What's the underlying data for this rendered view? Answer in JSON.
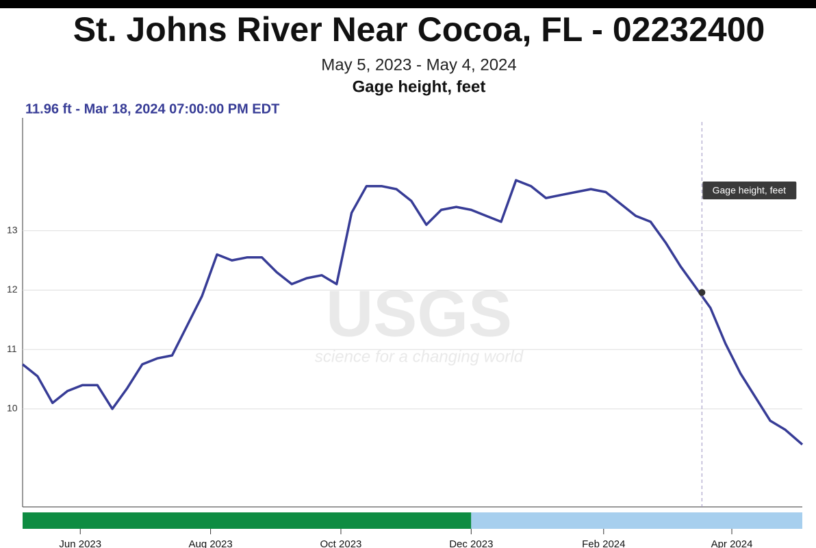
{
  "chart_data": {
    "type": "line",
    "title": "St. Johns River Near Cocoa, FL - 02232400",
    "subtitle": "May 5, 2023 - May 4, 2024",
    "y_label": "Gage height, feet",
    "hover": {
      "label": "11.96 ft - Mar 18, 2024 07:00:00 PM EDT",
      "x": "2024-03-18",
      "y": 11.96,
      "tooltip": "Gage height, feet"
    },
    "watermark": {
      "title": "USGS",
      "tagline": "science for a changing world"
    },
    "x": [
      "2023-05-05",
      "2023-05-12",
      "2023-05-19",
      "2023-05-26",
      "2023-06-02",
      "2023-06-09",
      "2023-06-16",
      "2023-06-23",
      "2023-06-30",
      "2023-07-07",
      "2023-07-14",
      "2023-07-21",
      "2023-07-28",
      "2023-08-04",
      "2023-08-11",
      "2023-08-18",
      "2023-08-25",
      "2023-09-01",
      "2023-09-08",
      "2023-09-15",
      "2023-09-22",
      "2023-09-29",
      "2023-10-06",
      "2023-10-13",
      "2023-10-20",
      "2023-10-27",
      "2023-11-03",
      "2023-11-10",
      "2023-11-17",
      "2023-11-24",
      "2023-12-01",
      "2023-12-08",
      "2023-12-15",
      "2023-12-22",
      "2023-12-29",
      "2024-01-05",
      "2024-01-12",
      "2024-01-19",
      "2024-01-26",
      "2024-02-02",
      "2024-02-09",
      "2024-02-16",
      "2024-02-23",
      "2024-03-01",
      "2024-03-08",
      "2024-03-15",
      "2024-03-22",
      "2024-03-29",
      "2024-04-05",
      "2024-04-12",
      "2024-04-19",
      "2024-04-26",
      "2024-05-04"
    ],
    "series": [
      {
        "name": "Gage height, feet",
        "color": "#373c96",
        "values": [
          10.75,
          10.55,
          10.1,
          10.3,
          10.4,
          10.4,
          10.0,
          10.35,
          10.75,
          10.85,
          10.9,
          11.4,
          11.9,
          12.6,
          12.5,
          12.55,
          12.55,
          12.3,
          12.1,
          12.2,
          12.25,
          12.1,
          13.3,
          13.75,
          13.75,
          13.7,
          13.5,
          13.1,
          13.35,
          13.4,
          13.35,
          13.25,
          13.15,
          13.85,
          13.75,
          13.55,
          13.6,
          13.65,
          13.7,
          13.65,
          13.45,
          13.25,
          13.15,
          12.8,
          12.4,
          12.05,
          11.7,
          11.1,
          10.6,
          10.2,
          9.8,
          9.65,
          9.4
        ]
      }
    ],
    "periods": [
      {
        "start": "2023-05-05",
        "end": "2023-12-01",
        "color": "#0e8c42"
      },
      {
        "start": "2023-12-01",
        "end": "2024-05-04",
        "color": "#a7cfee"
      }
    ],
    "xlim": [
      "2023-05-05",
      "2024-05-04"
    ],
    "xticks": [
      {
        "value": "2023-06-01",
        "label": "Jun 2023"
      },
      {
        "value": "2023-08-01",
        "label": "Aug 2023"
      },
      {
        "value": "2023-10-01",
        "label": "Oct 2023"
      },
      {
        "value": "2023-12-01",
        "label": "Dec 2023"
      },
      {
        "value": "2024-02-01",
        "label": "Feb 2024"
      },
      {
        "value": "2024-04-01",
        "label": "Apr 2024"
      }
    ],
    "ylim": [
      8.35,
      14.9
    ],
    "yticks": [
      10,
      11,
      12,
      13
    ],
    "grid": true
  }
}
